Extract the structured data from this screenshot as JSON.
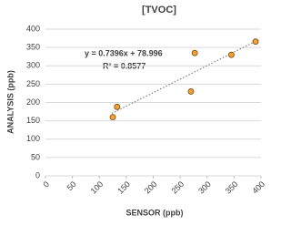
{
  "chart_data": {
    "type": "scatter",
    "title": "[TVOC]",
    "x_label": "SENSOR (ppb)",
    "y_label": "ANALYSIS (ppb)",
    "series": [
      {
        "name": "TVOC",
        "color": "#f2a23a",
        "x": [
          125,
          133,
          270,
          277,
          345,
          390
        ],
        "values": [
          160,
          188,
          230,
          335,
          330,
          366
        ]
      }
    ],
    "trendline": {
      "x": [
        123,
        390
      ],
      "values": [
        170,
        367
      ]
    },
    "annotations": [
      "y = 0.7396x + 78.996",
      "R² = 0.8577"
    ],
    "xlim": [
      0,
      400
    ],
    "xticks": [
      0,
      50,
      100,
      150,
      200,
      250,
      300,
      350,
      400
    ],
    "ylim": [
      0,
      400
    ],
    "yticks": [
      0,
      50,
      100,
      150,
      200,
      250,
      300,
      350,
      400
    ],
    "grid": true
  }
}
